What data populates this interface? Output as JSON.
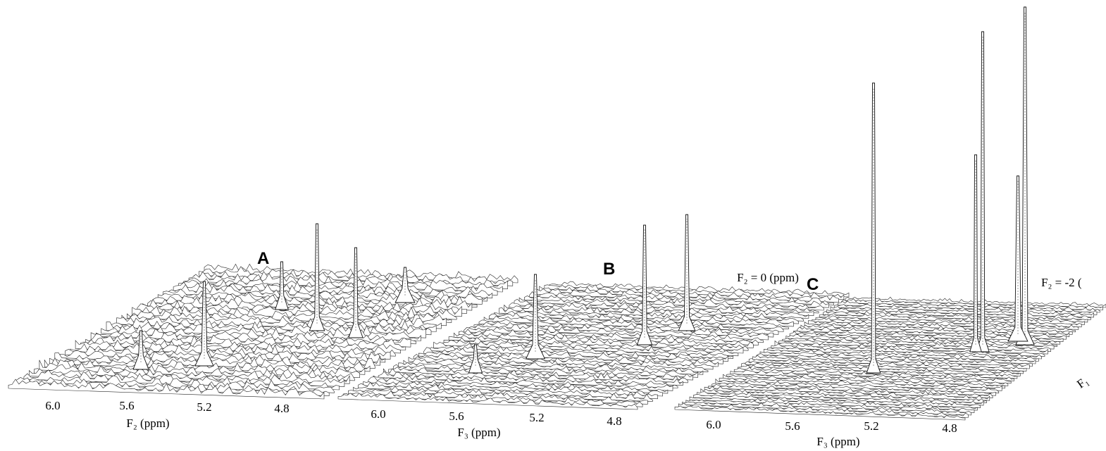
{
  "panels": [
    {
      "label": "A",
      "x_ticks": [
        "6.0",
        "5.6",
        "5.2",
        "4.8"
      ],
      "x_axis_title": "F₂ (ppm)"
    },
    {
      "label": "B",
      "x_ticks": [
        "6.0",
        "5.6",
        "5.2",
        "4.8"
      ],
      "x_axis_title": "F₃ (ppm)",
      "slice_label": "F₂ = 0 (ppm)"
    },
    {
      "label": "C",
      "x_ticks": [
        "6.0",
        "5.6",
        "5.2",
        "4.8"
      ],
      "x_axis_title": "F₃ (ppm)",
      "slice_label": "F₂ = -2 (",
      "depth_axis_title": "F₁"
    }
  ]
}
